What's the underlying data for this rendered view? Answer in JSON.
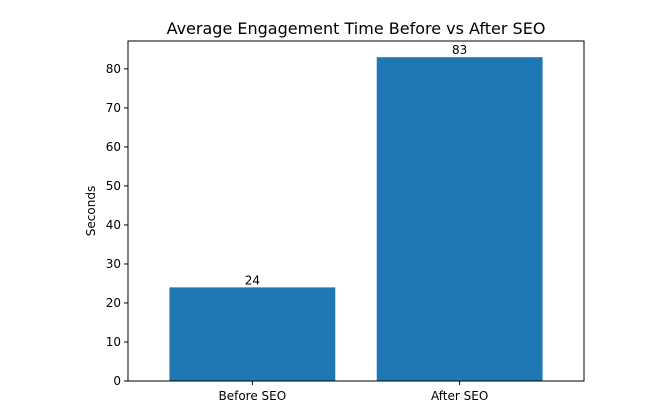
{
  "chart_data": {
    "type": "bar",
    "title": "Average Engagement Time Before vs After SEO",
    "xlabel": "",
    "ylabel": "Seconds",
    "categories": [
      "Before SEO",
      "After SEO"
    ],
    "values": [
      24,
      83
    ],
    "data_labels": [
      "24",
      "83"
    ],
    "ylim": [
      0,
      87.15
    ],
    "yticks": [
      0,
      10,
      20,
      30,
      40,
      50,
      60,
      70,
      80
    ],
    "bar_color": "#1f77b4",
    "grid": false,
    "legend": "none"
  }
}
